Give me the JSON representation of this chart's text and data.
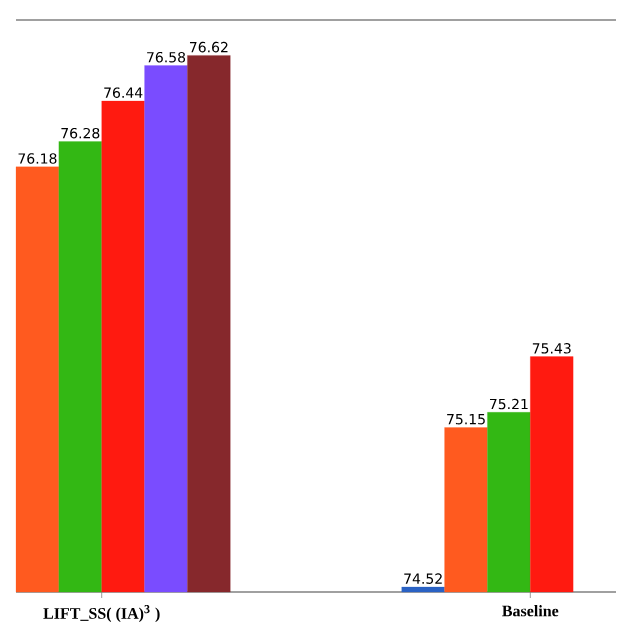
{
  "chart_data": {
    "type": "bar",
    "categories": [
      "LIFT_SS( (IA)$^{3}$ )",
      "Baseline"
    ],
    "series": [
      {
        "color": "#2a62c4",
        "values": [
          null,
          74.52
        ]
      },
      {
        "color": "#ff5a1f",
        "values": [
          76.18,
          75.15
        ]
      },
      {
        "color": "#33b814",
        "values": [
          76.28,
          75.21
        ]
      },
      {
        "color": "#ff1a10",
        "values": [
          76.44,
          75.43
        ]
      },
      {
        "color": "#7a4cff",
        "values": [
          76.58,
          null
        ]
      },
      {
        "color": "#86282c",
        "values": [
          76.62,
          null
        ]
      }
    ],
    "ylim": [
      74.5,
      76.76
    ],
    "data_labels": true,
    "tick_labels": "x"
  }
}
